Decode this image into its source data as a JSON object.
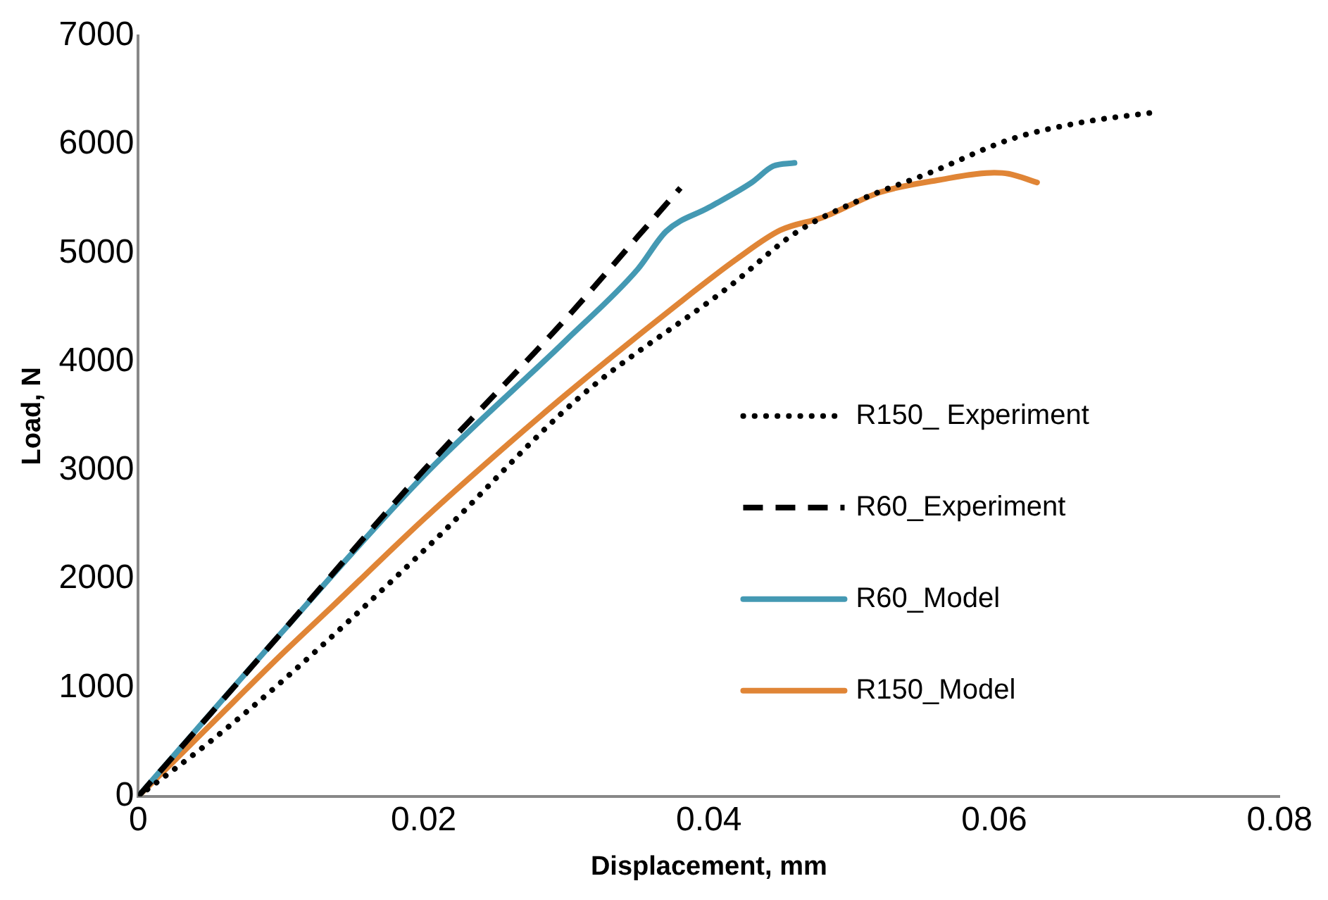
{
  "chart_data": {
    "type": "line",
    "xlabel": "Displacement, mm",
    "ylabel": "Load, N",
    "xlim": [
      0,
      0.08
    ],
    "xticks": [
      0,
      0.02,
      0.04,
      0.06,
      0.08
    ],
    "ylim": [
      0,
      7000
    ],
    "yticks": [
      0,
      1000,
      2000,
      3000,
      4000,
      5000,
      6000,
      7000
    ],
    "grid": false,
    "legend": "right",
    "marker": "none",
    "series": [
      {
        "name": "R150_ Experiment",
        "color": "#000000",
        "line_style": "dotted",
        "x": [
          0,
          0.005,
          0.01,
          0.0204,
          0.0309,
          0.0415,
          0.046,
          0.0506,
          0.0555,
          0.0612,
          0.066,
          0.0715
        ],
        "values": [
          0,
          500,
          1050,
          2310,
          3670,
          4700,
          5180,
          5490,
          5740,
          6050,
          6200,
          6300
        ]
      },
      {
        "name": "R60_Experiment",
        "color": "#000000",
        "line_style": "dashed",
        "x": [
          0,
          0.005,
          0.01,
          0.02,
          0.03,
          0.035,
          0.038
        ],
        "values": [
          0,
          750,
          1500,
          3000,
          4400,
          5150,
          5600
        ]
      },
      {
        "name": "R60_Model",
        "color": "#4499b3",
        "line_style": "solid",
        "x": [
          0,
          0.01,
          0.02,
          0.03,
          0.035,
          0.037,
          0.04,
          0.043,
          0.0445,
          0.046
        ],
        "values": [
          0,
          1500,
          2950,
          4200,
          4850,
          5200,
          5420,
          5650,
          5800,
          5830
        ]
      },
      {
        "name": "R150_Model",
        "color": "#e08536",
        "line_style": "solid",
        "x": [
          0,
          0.005,
          0.01,
          0.0133,
          0.02,
          0.0239,
          0.03,
          0.038,
          0.042,
          0.045,
          0.048,
          0.052,
          0.056,
          0.06,
          0.061,
          0.063
        ],
        "values": [
          0,
          650,
          1300,
          1710,
          2550,
          3010,
          3700,
          4550,
          4950,
          5210,
          5330,
          5560,
          5670,
          5740,
          5730,
          5650
        ]
      }
    ]
  }
}
